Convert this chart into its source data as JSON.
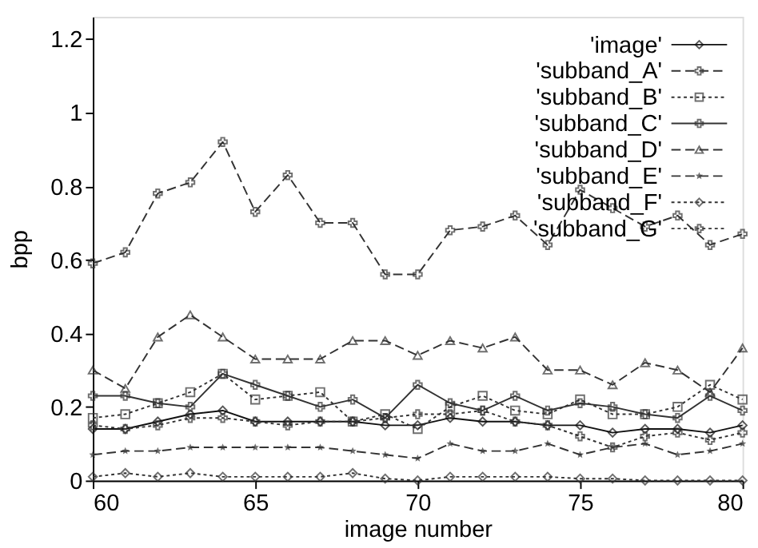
{
  "chart_data": {
    "type": "line",
    "xlabel": "image number",
    "ylabel": "bpp",
    "x": [
      60,
      61,
      62,
      63,
      64,
      65,
      66,
      67,
      68,
      69,
      70,
      71,
      72,
      73,
      74,
      75,
      76,
      77,
      78,
      79,
      80
    ],
    "xlim": [
      60,
      80
    ],
    "xticks": [
      60,
      65,
      70,
      75,
      80
    ],
    "ylim": [
      0,
      1.26
    ],
    "yticks": [
      0,
      0.2,
      0.4,
      0.6,
      0.8,
      1,
      1.2
    ],
    "grid": false,
    "legend": "top right",
    "series": [
      {
        "name": "'image'",
        "color": "#111111",
        "line_style": "solid",
        "marker": "diamond",
        "values": [
          0.14,
          0.14,
          0.16,
          0.18,
          0.19,
          0.16,
          0.16,
          0.16,
          0.16,
          0.15,
          0.15,
          0.17,
          0.16,
          0.16,
          0.15,
          0.15,
          0.13,
          0.14,
          0.14,
          0.13,
          0.15
        ]
      },
      {
        "name": "'subband_A'",
        "color": "#333333",
        "line_style": "dashed",
        "marker": "cross",
        "values": [
          0.59,
          0.62,
          0.78,
          0.81,
          0.92,
          0.73,
          0.83,
          0.7,
          0.7,
          0.56,
          0.56,
          0.68,
          0.69,
          0.72,
          0.64,
          0.79,
          0.74,
          0.69,
          0.72,
          0.64,
          0.67
        ]
      },
      {
        "name": "'subband_B'",
        "color": "#333333",
        "line_style": "dotted",
        "marker": "square",
        "values": [
          0.17,
          0.18,
          0.21,
          0.24,
          0.29,
          0.22,
          0.23,
          0.24,
          0.16,
          0.18,
          0.14,
          0.2,
          0.23,
          0.19,
          0.18,
          0.22,
          0.18,
          0.18,
          0.2,
          0.26,
          0.22
        ]
      },
      {
        "name": "'subband_C'",
        "color": "#333333",
        "line_style": "solid",
        "marker": "cross",
        "values": [
          0.23,
          0.23,
          0.21,
          0.2,
          0.29,
          0.26,
          0.23,
          0.2,
          0.22,
          0.17,
          0.26,
          0.21,
          0.19,
          0.23,
          0.19,
          0.21,
          0.2,
          0.18,
          0.17,
          0.23,
          0.19
        ]
      },
      {
        "name": "'subband_D'",
        "color": "#333333",
        "line_style": "dashed",
        "marker": "triangle",
        "values": [
          0.3,
          0.25,
          0.39,
          0.45,
          0.39,
          0.33,
          0.33,
          0.33,
          0.38,
          0.38,
          0.34,
          0.38,
          0.36,
          0.39,
          0.3,
          0.3,
          0.26,
          0.32,
          0.3,
          0.24,
          0.36
        ]
      },
      {
        "name": "'subband_E'",
        "color": "#333333",
        "line_style": "dashed",
        "marker": "star",
        "values": [
          0.07,
          0.08,
          0.08,
          0.09,
          0.09,
          0.09,
          0.09,
          0.09,
          0.08,
          0.07,
          0.06,
          0.1,
          0.08,
          0.08,
          0.1,
          0.07,
          0.09,
          0.1,
          0.07,
          0.08,
          0.1
        ]
      },
      {
        "name": "'subband_F'",
        "color": "#333333",
        "line_style": "dotted",
        "marker": "diamond",
        "values": [
          0.01,
          0.02,
          0.01,
          0.02,
          0.01,
          0.01,
          0.01,
          0.01,
          0.02,
          0.005,
          0,
          0.01,
          0.01,
          0.01,
          0.01,
          0.005,
          0.005,
          0,
          0,
          0,
          0
        ]
      },
      {
        "name": "'subband_G'",
        "color": "#333333",
        "line_style": "dotted",
        "marker": "cross",
        "values": [
          0.15,
          0.14,
          0.15,
          0.17,
          0.17,
          0.16,
          0.15,
          0.16,
          0.16,
          0.17,
          0.18,
          0.18,
          0.19,
          0.16,
          0.15,
          0.12,
          0.09,
          0.12,
          0.13,
          0.11,
          0.13
        ]
      }
    ]
  }
}
